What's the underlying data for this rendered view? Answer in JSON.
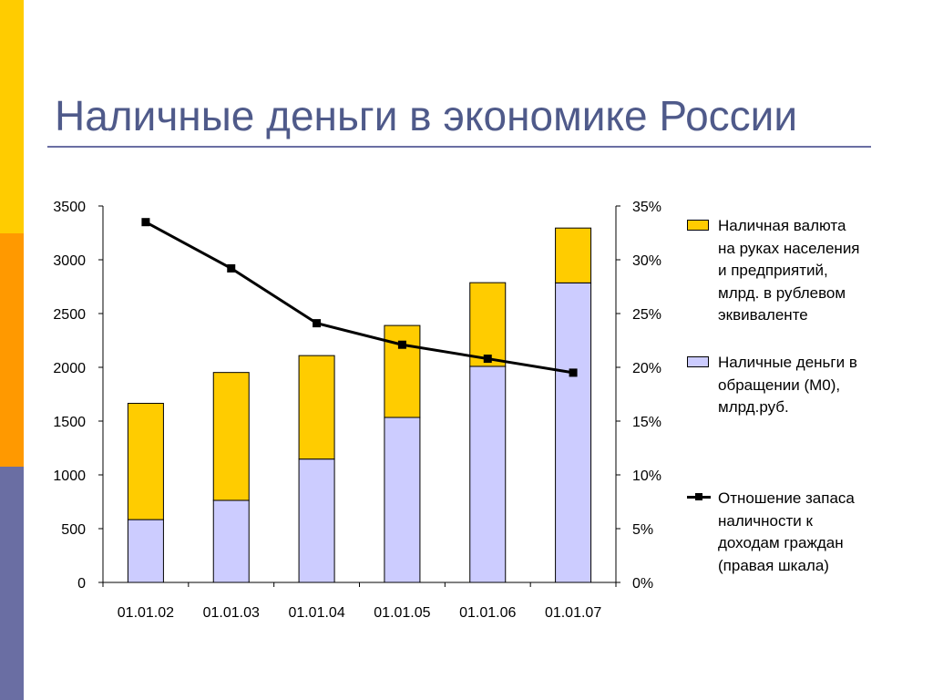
{
  "slide": {
    "title": "Наличные деньги в экономике России",
    "colors": {
      "title": "#4f5a8a",
      "rule": "#6a6ea3",
      "sidebar": [
        "#ffcc00",
        "#ff9900",
        "#6a6ea3"
      ]
    }
  },
  "chart_data": {
    "type": "bar",
    "stacked": true,
    "categories": [
      "01.01.02",
      "01.01.03",
      "01.01.04",
      "01.01.05",
      "01.01.06",
      "01.01.07"
    ],
    "series": [
      {
        "name": "Наличные деньги в обращении (М0), млрд.руб.",
        "type": "bar",
        "axis": "left",
        "color": "#ccccff",
        "values": [
          584,
          763,
          1147,
          1534,
          2009,
          2785
        ]
      },
      {
        "name": "Наличная валюта на руках населения и предприятий, млрд. в рублевом эквиваленте",
        "type": "bar",
        "axis": "left",
        "color": "#ffcc00",
        "values": [
          1081,
          1189,
          962,
          855,
          778,
          510
        ]
      },
      {
        "name": "Отношение запаса наличности к доходам граждан (правая шкала)",
        "type": "line",
        "axis": "right",
        "color": "#000000",
        "values": [
          33.5,
          29.2,
          24.1,
          22.1,
          20.8,
          19.5
        ]
      }
    ],
    "left_axis": {
      "ylim": [
        0,
        3500
      ],
      "ticks": [
        "0",
        "500",
        "1000",
        "1500",
        "2000",
        "2500",
        "3000",
        "3500"
      ]
    },
    "right_axis": {
      "ylim": [
        0,
        35
      ],
      "ticks": [
        "0%",
        "5%",
        "10%",
        "15%",
        "20%",
        "25%",
        "30%",
        "35%"
      ]
    },
    "grid": false,
    "legend_position": "right"
  }
}
